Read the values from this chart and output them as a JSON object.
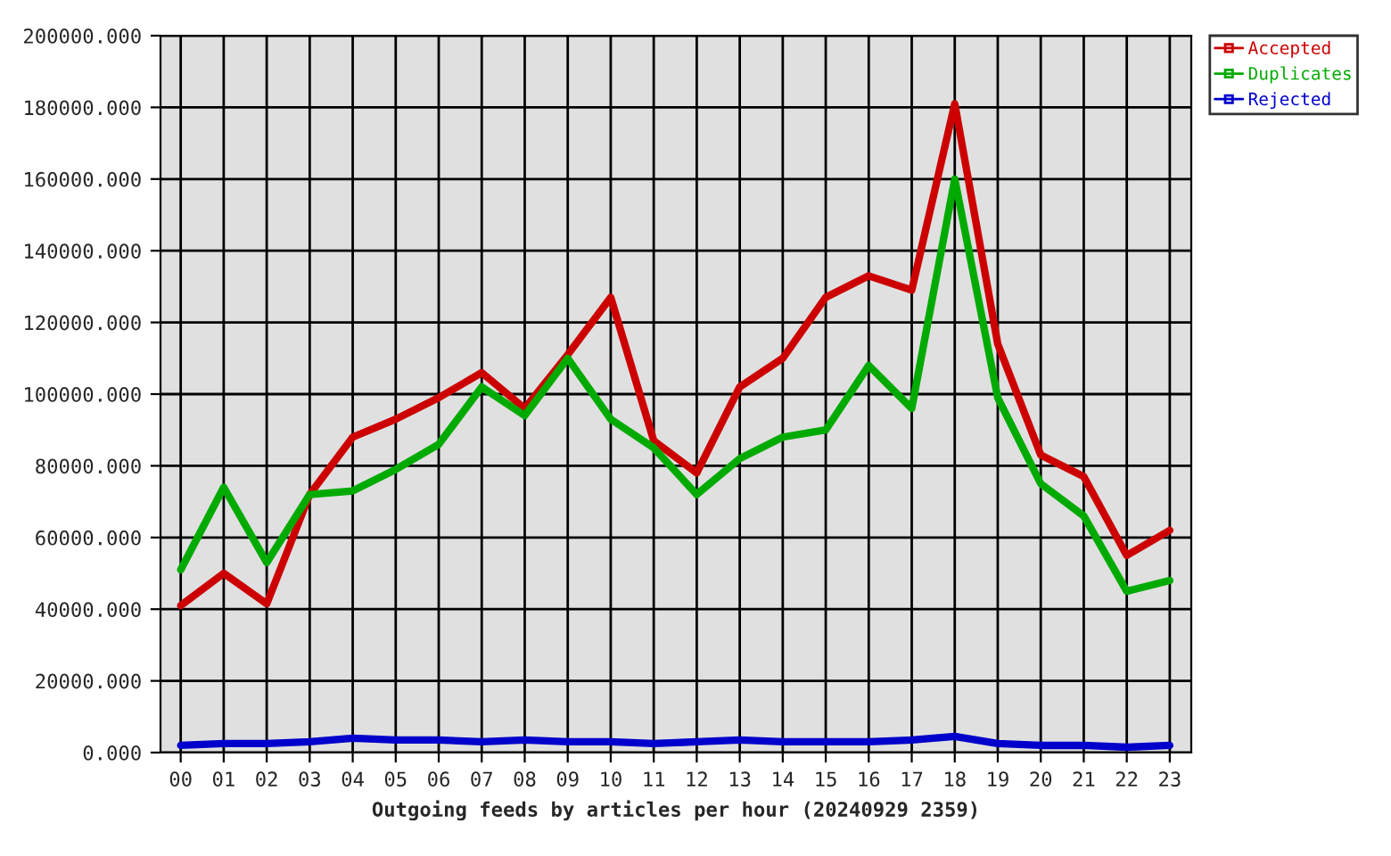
{
  "chart_data": {
    "type": "line",
    "xlabel": "Outgoing feeds by articles per hour (20240929 2359)",
    "categories": [
      "00",
      "01",
      "02",
      "03",
      "04",
      "05",
      "06",
      "07",
      "08",
      "09",
      "10",
      "11",
      "12",
      "13",
      "14",
      "15",
      "16",
      "17",
      "18",
      "19",
      "20",
      "21",
      "22",
      "23"
    ],
    "series": [
      {
        "name": "Accepted",
        "color": "#cc0000",
        "values": [
          41000,
          50000,
          41500,
          72000,
          88000,
          93000,
          99000,
          106000,
          96000,
          111000,
          127000,
          87000,
          78000,
          102000,
          110000,
          127000,
          133000,
          129000,
          181000,
          114000,
          83000,
          77000,
          55000,
          62000
        ]
      },
      {
        "name": "Duplicates",
        "color": "#00aa00",
        "values": [
          51000,
          74000,
          53000,
          72000,
          73000,
          79000,
          86000,
          102000,
          94000,
          110000,
          93000,
          85000,
          72000,
          82000,
          88000,
          90000,
          108000,
          96000,
          160000,
          99000,
          75000,
          66000,
          45000,
          48000
        ]
      },
      {
        "name": "Rejected",
        "color": "#0000cc",
        "values": [
          2000,
          2500,
          2500,
          3000,
          4000,
          3500,
          3500,
          3000,
          3500,
          3000,
          3000,
          2500,
          3000,
          3500,
          3000,
          3000,
          3000,
          3500,
          4500,
          2500,
          2000,
          2000,
          1500,
          2000
        ]
      }
    ],
    "ylim": [
      0,
      200000
    ],
    "yticks": [
      {
        "value": 0,
        "label": "0.000"
      },
      {
        "value": 20000,
        "label": "20000.000"
      },
      {
        "value": 40000,
        "label": "40000.000"
      },
      {
        "value": 60000,
        "label": "60000.000"
      },
      {
        "value": 80000,
        "label": "80000.000"
      },
      {
        "value": 100000,
        "label": "100000.000"
      },
      {
        "value": 120000,
        "label": "120000.000"
      },
      {
        "value": 140000,
        "label": "140000.000"
      },
      {
        "value": 160000,
        "label": "160000.000"
      },
      {
        "value": 180000,
        "label": "180000.000"
      },
      {
        "value": 200000,
        "label": "200000.000"
      }
    ],
    "grid": true,
    "legend": "top right",
    "line_style": "solid"
  }
}
